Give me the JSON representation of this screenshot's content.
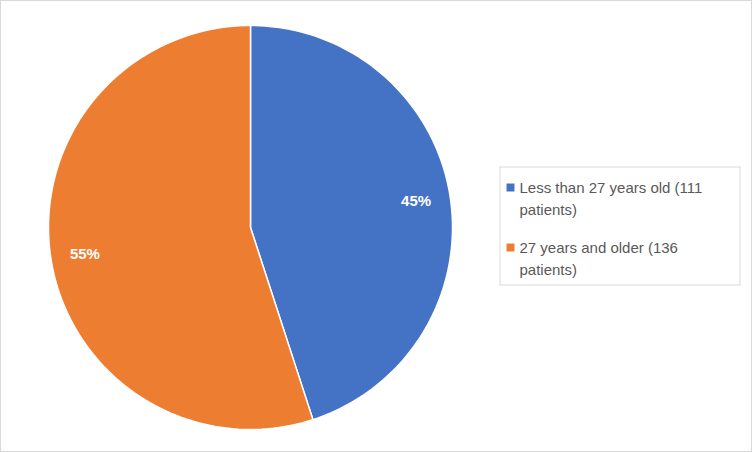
{
  "chart_data": {
    "type": "pie",
    "categories": [
      "Less than 27 years old (111 patients)",
      "27 years and older (136 patients)"
    ],
    "values": [
      45,
      55
    ],
    "value_labels": [
      "45%",
      "55%"
    ],
    "colors": [
      "#4472c4",
      "#ed7d31"
    ],
    "data_labels": true,
    "legend": "right"
  }
}
